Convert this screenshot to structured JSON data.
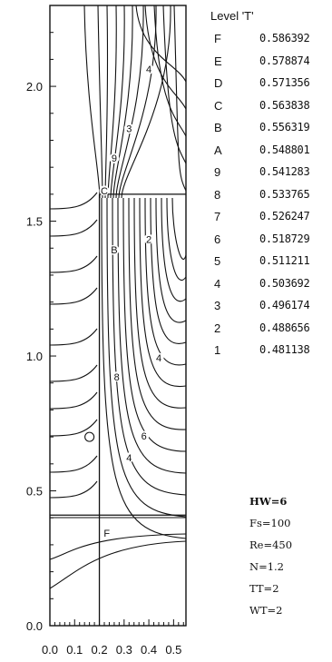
{
  "chart_data": {
    "type": "contour",
    "xlim": [
      0.0,
      0.55
    ],
    "ylim": [
      0.0,
      2.3
    ],
    "x_ticks": [
      "0.0",
      "0.1",
      "0.2",
      "0.3",
      "0.4",
      "0.5"
    ],
    "y_ticks": [
      "0.0",
      "0.5",
      "1.0",
      "1.5",
      "2.0"
    ],
    "legend_title": "Level 'T'",
    "levels": [
      {
        "code": "F",
        "value": "0.586392"
      },
      {
        "code": "E",
        "value": "0.578874"
      },
      {
        "code": "D",
        "value": "0.571356"
      },
      {
        "code": "C",
        "value": "0.563838"
      },
      {
        "code": "B",
        "value": "0.556319"
      },
      {
        "code": "A",
        "value": "0.548801"
      },
      {
        "code": "9",
        "value": "0.541283"
      },
      {
        "code": "8",
        "value": "0.533765"
      },
      {
        "code": "7",
        "value": "0.526247"
      },
      {
        "code": "6",
        "value": "0.518729"
      },
      {
        "code": "5",
        "value": "0.511211"
      },
      {
        "code": "4",
        "value": "0.503692"
      },
      {
        "code": "3",
        "value": "0.496174"
      },
      {
        "code": "2",
        "value": "0.488656"
      },
      {
        "code": "1",
        "value": "0.481138"
      }
    ],
    "contour_labels": [
      {
        "text": "4",
        "x": 0.4,
        "y": 2.05
      },
      {
        "text": "3",
        "x": 0.32,
        "y": 1.83
      },
      {
        "text": "9",
        "x": 0.26,
        "y": 1.72
      },
      {
        "text": "C",
        "x": 0.22,
        "y": 1.6
      },
      {
        "text": "2",
        "x": 0.4,
        "y": 1.42
      },
      {
        "text": "B",
        "x": 0.26,
        "y": 1.38
      },
      {
        "text": "4",
        "x": 0.44,
        "y": 0.98
      },
      {
        "text": "8",
        "x": 0.27,
        "y": 0.91
      },
      {
        "text": "6",
        "x": 0.38,
        "y": 0.69
      },
      {
        "text": "4",
        "x": 0.32,
        "y": 0.61
      },
      {
        "text": "F",
        "x": 0.23,
        "y": 0.33
      }
    ],
    "solid_boundaries": [
      {
        "x_start": 0.2,
        "x_end": 0.55,
        "y": 1.6
      },
      {
        "x_start": 0.0,
        "x_end": 0.55,
        "y": 0.41
      },
      {
        "x": 0.2,
        "y_start": 0.0,
        "y_end": 1.6
      }
    ]
  },
  "parameters": [
    "HW=6",
    "Fs=100",
    "Re=450",
    "N=1.2",
    "TT=2",
    "WT=2"
  ]
}
